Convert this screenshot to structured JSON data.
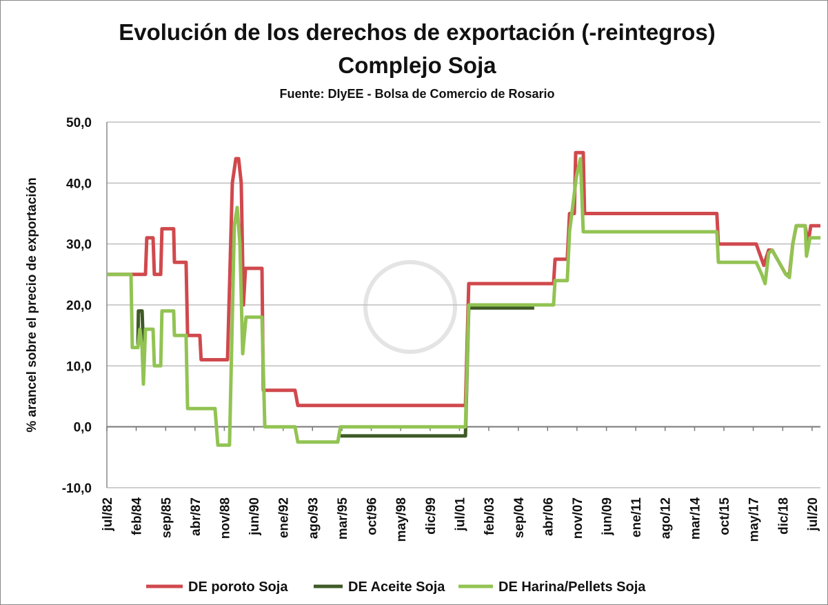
{
  "chart_data": {
    "type": "line",
    "title": "Evolución de los derechos de exportación (-reintegros)",
    "subtitle": "Complejo Soja",
    "source": "Fuente: DIyEE - Bolsa de Comercio de Rosario",
    "y_label": "% arancel sobre el precio de exportación",
    "xlim": [
      1982.5,
      2020.95
    ],
    "ylim": [
      -10,
      50
    ],
    "yticks": [
      {
        "value": -10,
        "label": "-10,0"
      },
      {
        "value": 0,
        "label": "0,0"
      },
      {
        "value": 10,
        "label": "10,0"
      },
      {
        "value": 20,
        "label": "20,0"
      },
      {
        "value": 30,
        "label": "30,0"
      },
      {
        "value": 40,
        "label": "40,0"
      },
      {
        "value": 50,
        "label": "50,0"
      }
    ],
    "xticks": [
      {
        "value": 1982.5,
        "label": "jul/82"
      },
      {
        "value": 1984.08,
        "label": "feb/84"
      },
      {
        "value": 1985.67,
        "label": "sep/85"
      },
      {
        "value": 1987.25,
        "label": "abr/87"
      },
      {
        "value": 1988.83,
        "label": "nov/88"
      },
      {
        "value": 1990.42,
        "label": "jun/90"
      },
      {
        "value": 1992.0,
        "label": "ene/92"
      },
      {
        "value": 1993.58,
        "label": "ago/93"
      },
      {
        "value": 1995.17,
        "label": "mar/95"
      },
      {
        "value": 1996.75,
        "label": "oct/96"
      },
      {
        "value": 1998.33,
        "label": "may/98"
      },
      {
        "value": 1999.92,
        "label": "dic/99"
      },
      {
        "value": 2001.5,
        "label": "jul/01"
      },
      {
        "value": 2003.08,
        "label": "feb/03"
      },
      {
        "value": 2004.67,
        "label": "sep/04"
      },
      {
        "value": 2006.25,
        "label": "abr/06"
      },
      {
        "value": 2007.83,
        "label": "nov/07"
      },
      {
        "value": 2009.42,
        "label": "jun/09"
      },
      {
        "value": 2011.0,
        "label": "ene/11"
      },
      {
        "value": 2012.58,
        "label": "ago/12"
      },
      {
        "value": 2014.17,
        "label": "mar/14"
      },
      {
        "value": 2015.75,
        "label": "oct/15"
      },
      {
        "value": 2017.33,
        "label": "may/17"
      },
      {
        "value": 2018.92,
        "label": "dic/18"
      },
      {
        "value": 2020.5,
        "label": "jul/20"
      }
    ],
    "grid": true,
    "legend": "bottom",
    "series": [
      {
        "name": "DE poroto Soja",
        "color": "#d0494d",
        "x": [
          1982.5,
          1984.58,
          1984.65,
          1984.99,
          1985.06,
          1985.4,
          1985.47,
          1986.1,
          1986.14,
          1986.77,
          1986.85,
          1987.51,
          1987.58,
          1989.0,
          1989.26,
          1989.45,
          1989.6,
          1989.74,
          1989.86,
          1989.97,
          1990.86,
          1990.93,
          1992.64,
          1992.79,
          2001.82,
          2002.0,
          2006.57,
          2006.65,
          2007.31,
          2007.43,
          2007.69,
          2007.76,
          2008.17,
          2008.24,
          2015.37,
          2015.45,
          2017.49,
          2017.9,
          2018.16,
          2018.35,
          2018.72,
          2019.09,
          2019.28,
          2019.46,
          2019.65,
          2020.13,
          2020.28,
          2020.43,
          2020.95
        ],
        "values": [
          25,
          25,
          31,
          31,
          25,
          25,
          32.5,
          32.5,
          27,
          27,
          15,
          15,
          11,
          11,
          40,
          44,
          44,
          40,
          20,
          26,
          26,
          6,
          6,
          3.5,
          3.5,
          23.5,
          23.5,
          27.5,
          27.5,
          35,
          35,
          45,
          45,
          35,
          35,
          30,
          30,
          26.5,
          29,
          29,
          27,
          25,
          25,
          30,
          33,
          33,
          30,
          33,
          33
        ]
      },
      {
        "name": "DE Aceite Soja",
        "color": "#3f5a26",
        "x": [
          1984.17,
          1984.2,
          1984.4,
          1984.47,
          null,
          1995.09,
          2001.82,
          2002.0,
          2005.53
        ],
        "values": [
          13.5,
          19,
          19,
          13,
          null,
          -1.5,
          -1.5,
          19.5,
          19.5
        ]
      },
      {
        "name": "DE Harina/Pellets Soja",
        "color": "#92c353",
        "x": [
          1982.5,
          1983.8,
          1983.87,
          1984.17,
          1984.28,
          1984.4,
          1984.47,
          1984.58,
          1984.99,
          1985.06,
          1985.4,
          1985.47,
          1986.1,
          1986.14,
          1986.77,
          1986.85,
          1988.33,
          1988.48,
          1989.11,
          1989.37,
          1989.52,
          1989.67,
          1989.82,
          1990.0,
          1990.86,
          1991.01,
          1992.64,
          1992.79,
          1994.94,
          1995.09,
          2001.82,
          2002.0,
          2006.57,
          2006.65,
          2007.31,
          2007.43,
          2007.8,
          2008.02,
          2008.17,
          2015.37,
          2015.45,
          2017.49,
          2017.79,
          2017.97,
          2018.16,
          2018.35,
          2018.72,
          2019.09,
          2019.28,
          2019.46,
          2019.65,
          2020.13,
          2020.2,
          2020.39,
          2020.95
        ],
        "values": [
          25,
          25,
          13,
          13,
          16,
          13,
          7,
          16,
          16,
          10,
          10,
          19,
          19,
          15,
          15,
          3,
          3,
          -3,
          -3,
          33,
          36,
          30,
          12,
          18,
          18,
          0,
          0,
          -2.5,
          -2.5,
          0,
          0,
          20,
          20,
          24,
          24,
          32,
          41,
          44,
          32,
          32,
          27,
          27,
          25,
          23.5,
          28.5,
          29,
          27,
          25,
          24.5,
          30,
          33,
          33,
          28,
          31,
          31
        ]
      }
    ]
  }
}
